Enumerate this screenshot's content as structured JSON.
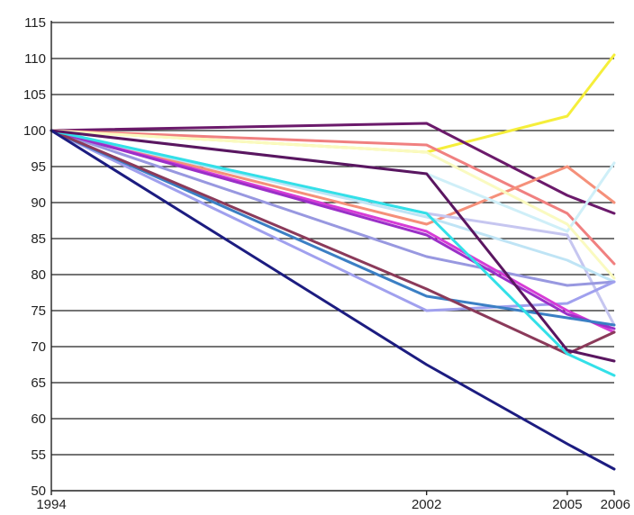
{
  "chart_data": {
    "type": "line",
    "title": "",
    "xlabel": "",
    "ylabel": "",
    "x": [
      1994,
      2002,
      2005,
      2006
    ],
    "ylim": [
      50,
      115
    ],
    "yticks": [
      50,
      55,
      60,
      65,
      70,
      75,
      80,
      85,
      90,
      95,
      100,
      105,
      110,
      115
    ],
    "grid": true,
    "legend": "none",
    "series": [
      {
        "color": "#f5ee3a",
        "values": [
          100,
          97,
          102,
          110.5
        ]
      },
      {
        "color": "#6b1a6b",
        "values": [
          100,
          101,
          91,
          88.5
        ]
      },
      {
        "color": "#f08080",
        "values": [
          100,
          98,
          88.5,
          81.5
        ]
      },
      {
        "color": "#f5907a",
        "values": [
          100,
          87,
          95,
          90
        ]
      },
      {
        "color": "#cfeff8",
        "values": [
          100,
          94,
          86,
          95.5
        ]
      },
      {
        "color": "#fafac0",
        "values": [
          100,
          97,
          87,
          79.5
        ]
      },
      {
        "color": "#c6c6f0",
        "values": [
          100,
          88.5,
          85.5,
          73
        ]
      },
      {
        "color": "#bfe4f5",
        "values": [
          100,
          88,
          82,
          79
        ]
      },
      {
        "color": "#9898e0",
        "values": [
          100,
          82.5,
          78.5,
          79
        ]
      },
      {
        "color": "#a0a0ee",
        "values": [
          100,
          75,
          76,
          79
        ]
      },
      {
        "color": "#d63cd6",
        "values": [
          100,
          86,
          75,
          72
        ]
      },
      {
        "color": "#9b30c8",
        "values": [
          100,
          85.5,
          74.5,
          72.5
        ]
      },
      {
        "color": "#3b7fc4",
        "values": [
          100,
          77,
          74,
          73
        ]
      },
      {
        "color": "#8b3a5a",
        "values": [
          100,
          78,
          69,
          72
        ]
      },
      {
        "color": "#33e0e8",
        "values": [
          100,
          88.5,
          69,
          66
        ]
      },
      {
        "color": "#5a1660",
        "values": [
          100,
          94,
          69.5,
          68
        ]
      },
      {
        "color": "#1c1c80",
        "values": [
          100,
          67.5,
          56.5,
          53
        ]
      }
    ]
  }
}
